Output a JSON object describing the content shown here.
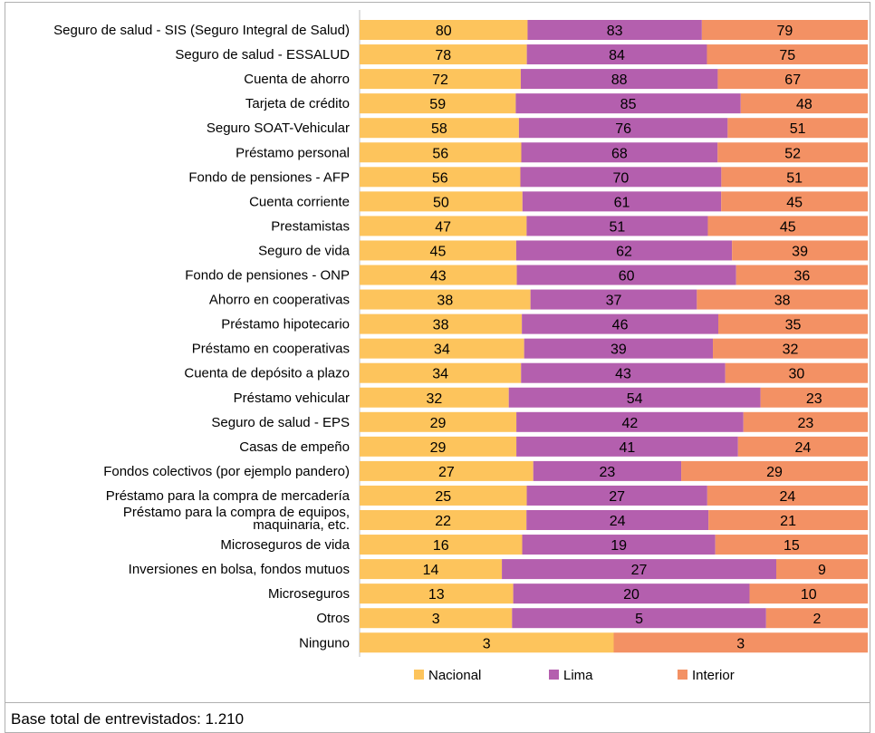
{
  "chart_data": {
    "type": "bar",
    "stacked": true,
    "orientation": "horizontal",
    "normalized": true,
    "categories": [
      "Seguro de salud - SIS (Seguro Integral de Salud)",
      "Seguro de salud - ESSALUD",
      "Cuenta de ahorro",
      "Tarjeta de crédito",
      "Seguro SOAT-Vehicular",
      "Préstamo personal",
      "Fondo de pensiones - AFP",
      "Cuenta corriente",
      "Prestamistas",
      "Seguro de vida",
      "Fondo de pensiones - ONP",
      "Ahorro en cooperativas",
      "Préstamo hipotecario",
      "Préstamo en cooperativas",
      "Cuenta de depósito a plazo",
      "Préstamo vehicular",
      "Seguro de salud - EPS",
      "Casas de empeño",
      "Fondos colectivos (por ejemplo pandero)",
      "Préstamo para la compra de mercadería",
      "Préstamo para la compra de equipos,\nmaquinaria, etc.",
      "Microseguros de vida",
      "Inversiones en bolsa, fondos mutuos",
      "Microseguros",
      "Otros",
      "Ninguno"
    ],
    "series": [
      {
        "name": "Nacional",
        "color": "#FDC45C",
        "values": [
          80,
          78,
          72,
          59,
          58,
          56,
          56,
          50,
          47,
          45,
          43,
          38,
          38,
          34,
          34,
          32,
          29,
          29,
          27,
          25,
          22,
          16,
          14,
          13,
          3,
          3
        ]
      },
      {
        "name": "Lima",
        "color": "#B45FAE",
        "values": [
          83,
          84,
          88,
          85,
          76,
          68,
          70,
          61,
          51,
          62,
          60,
          37,
          46,
          39,
          43,
          54,
          42,
          41,
          23,
          27,
          24,
          19,
          27,
          20,
          5,
          null
        ]
      },
      {
        "name": "Interior",
        "color": "#F39164",
        "values": [
          79,
          75,
          67,
          48,
          51,
          52,
          51,
          45,
          45,
          39,
          36,
          38,
          35,
          32,
          30,
          23,
          23,
          24,
          29,
          24,
          21,
          15,
          9,
          10,
          2,
          3
        ]
      }
    ],
    "legend": "bottom-center",
    "grid": false
  },
  "footer": {
    "base_text": "Base total de entrevistados: 1.210"
  }
}
